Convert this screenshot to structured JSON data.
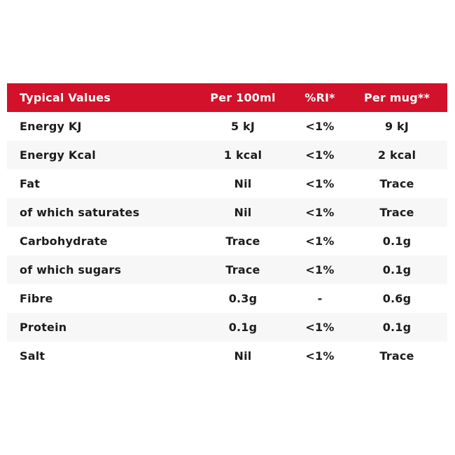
{
  "colors": {
    "header_bg": "#d2112a",
    "header_text": "#ffffff",
    "row_alt_bg": "#f7f7f7",
    "row_bg": "#ffffff",
    "text": "#1c1c1c",
    "page_bg": "#ffffff"
  },
  "table": {
    "header": {
      "label": "Typical Values",
      "per_100ml": "Per 100ml",
      "ri_percent": "%RI*",
      "per_mug": "Per mug**"
    },
    "rows": [
      {
        "label": "Energy KJ",
        "per_100ml": "5 kJ",
        "ri_percent": "<1%",
        "per_mug": "9 kJ"
      },
      {
        "label": "Energy Kcal",
        "per_100ml": "1 kcal",
        "ri_percent": "<1%",
        "per_mug": "2 kcal"
      },
      {
        "label": "Fat",
        "per_100ml": "Nil",
        "ri_percent": "<1%",
        "per_mug": "Trace"
      },
      {
        "label": "of which saturates",
        "per_100ml": "Nil",
        "ri_percent": "<1%",
        "per_mug": "Trace"
      },
      {
        "label": "Carbohydrate",
        "per_100ml": "Trace",
        "ri_percent": "<1%",
        "per_mug": "0.1g"
      },
      {
        "label": "of which sugars",
        "per_100ml": "Trace",
        "ri_percent": "<1%",
        "per_mug": "0.1g"
      },
      {
        "label": "Fibre",
        "per_100ml": "0.3g",
        "ri_percent": "-",
        "per_mug": "0.6g"
      },
      {
        "label": "Protein",
        "per_100ml": "0.1g",
        "ri_percent": "<1%",
        "per_mug": "0.1g"
      },
      {
        "label": "Salt",
        "per_100ml": "Nil",
        "ri_percent": "<1%",
        "per_mug": "Trace"
      }
    ]
  }
}
